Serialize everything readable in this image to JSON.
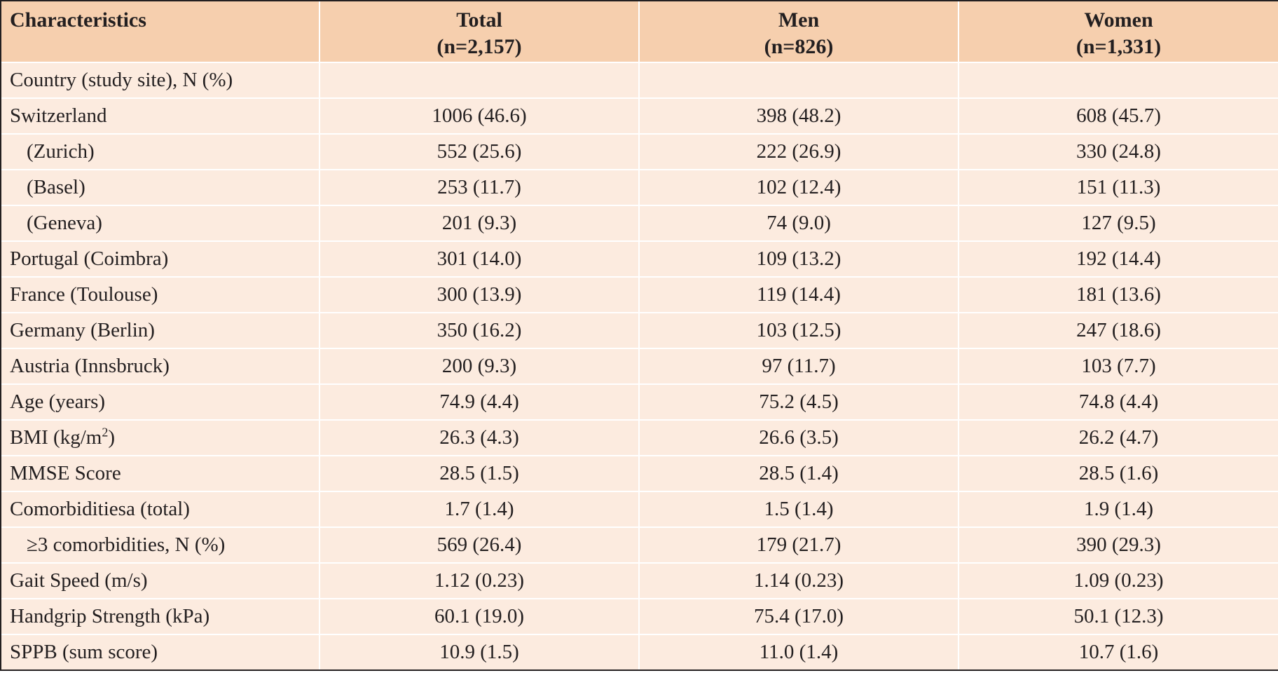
{
  "header": {
    "characteristics": "Characteristics",
    "total": "Total",
    "total_n": "(n=2,157)",
    "men": "Men",
    "men_n": "(n=826)",
    "women": "Women",
    "women_n": "(n=1,331)"
  },
  "rows": [
    {
      "label": "Country (study site), N (%)",
      "total": "",
      "men": "",
      "women": ""
    },
    {
      "label": "Switzerland",
      "total": "1006 (46.6)",
      "men": "398 (48.2)",
      "women": "608 (45.7)"
    },
    {
      "label": "(Zurich)",
      "total": "552 (25.6)",
      "men": "222 (26.9)",
      "women": "330 (24.8)"
    },
    {
      "label": "(Basel)",
      "total": "253 (11.7)",
      "men": "102 (12.4)",
      "women": "151 (11.3)"
    },
    {
      "label": "(Geneva)",
      "total": "201 (9.3)",
      "men": "74 (9.0)",
      "women": "127 (9.5)"
    },
    {
      "label": "Portugal (Coimbra)",
      "total": "301 (14.0)",
      "men": "109 (13.2)",
      "women": "192 (14.4)"
    },
    {
      "label": "France (Toulouse)",
      "total": "300 (13.9)",
      "men": "119 (14.4)",
      "women": "181 (13.6)"
    },
    {
      "label": "Germany (Berlin)",
      "total": "350 (16.2)",
      "men": "103 (12.5)",
      "women": "247 (18.6)"
    },
    {
      "label": "Austria (Innsbruck)",
      "total": "200 (9.3)",
      "men": "97 (11.7)",
      "women": "103 (7.7)"
    },
    {
      "label": "Age (years)",
      "total": "74.9 (4.4)",
      "men": "75.2 (4.5)",
      "women": "74.8 (4.4)"
    },
    {
      "label": "BMI (kg/m",
      "label_sup": "2",
      "label_after": ")",
      "total": "26.3 (4.3)",
      "men": "26.6 (3.5)",
      "women": "26.2 (4.7)"
    },
    {
      "label": "MMSE Score",
      "total": "28.5 (1.5)",
      "men": "28.5 (1.4)",
      "women": "28.5 (1.6)"
    },
    {
      "label": "Comorbiditiesa (total)",
      "total": "1.7 (1.4)",
      "men": "1.5 (1.4)",
      "women": "1.9 (1.4)"
    },
    {
      "label": "≥3 comorbidities, N (%)",
      "total": "569 (26.4)",
      "men": "179 (21.7)",
      "women": "390 (29.3)"
    },
    {
      "label": "Gait Speed (m/s)",
      "total": "1.12 (0.23)",
      "men": "1.14 (0.23)",
      "women": "1.09 (0.23)"
    },
    {
      "label": "Handgrip Strength (kPa)",
      "total": "60.1 (19.0)",
      "men": "75.4 (17.0)",
      "women": "50.1 (12.3)"
    },
    {
      "label": "SPPB (sum score)",
      "total": "10.9 (1.5)",
      "men": "11.0 (1.4)",
      "women": "10.7 (1.6)"
    }
  ]
}
